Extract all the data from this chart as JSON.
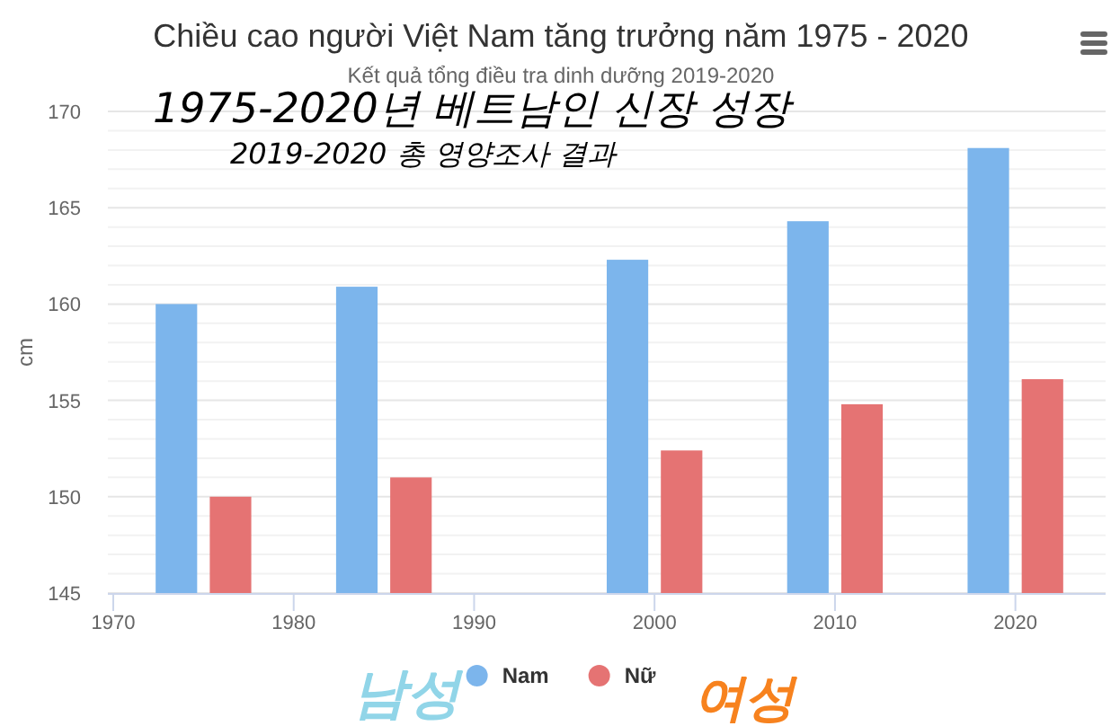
{
  "chart_data": {
    "type": "bar",
    "title": "Chiều cao người Việt Nam tăng trưởng năm 1975 - 2020",
    "subtitle": "Kết quả tổng điều tra dinh dưỡng 2019-2020",
    "ylabel": "cm",
    "x": [
      1975,
      1985,
      2000,
      2010,
      2020
    ],
    "series": [
      {
        "name": "Nam",
        "color": "#7cb5ec",
        "values": [
          160,
          160.9,
          162.3,
          164.3,
          168.1
        ]
      },
      {
        "name": "Nữ",
        "color": "#e57373",
        "values": [
          150,
          151,
          152.4,
          154.8,
          156.1
        ]
      }
    ],
    "xlim": [
      1970,
      2025
    ],
    "xticks": [
      1970,
      1980,
      1990,
      2000,
      2010,
      2020
    ],
    "ylim": [
      145,
      170
    ],
    "yticks": [
      145,
      {
        "value": 146,
        "label": null
      },
      {
        "value": 147,
        "label": null
      },
      {
        "value": 148,
        "label": null
      },
      {
        "value": 149,
        "label": null
      },
      150,
      {
        "value": 151,
        "label": null
      },
      {
        "value": 152,
        "label": null
      },
      {
        "value": 153,
        "label": null
      },
      {
        "value": 154,
        "label": null
      },
      155,
      {
        "value": 156,
        "label": null
      },
      {
        "value": 157,
        "label": null
      },
      {
        "value": 158,
        "label": null
      },
      {
        "value": 159,
        "label": null
      },
      160,
      {
        "value": 161,
        "label": null
      },
      {
        "value": 162,
        "label": null
      },
      {
        "value": 163,
        "label": null
      },
      {
        "value": 164,
        "label": null
      },
      165,
      {
        "value": 166,
        "label": null
      },
      {
        "value": 167,
        "label": null
      },
      {
        "value": 168,
        "label": null
      },
      {
        "value": 169,
        "label": null
      },
      170
    ],
    "grid": "y",
    "legend": "bottom",
    "annotations": [
      "1975-2020년 베트남인 신장 성장",
      "2019-2020 총 영양조사 결과",
      "남성",
      "여성"
    ]
  }
}
